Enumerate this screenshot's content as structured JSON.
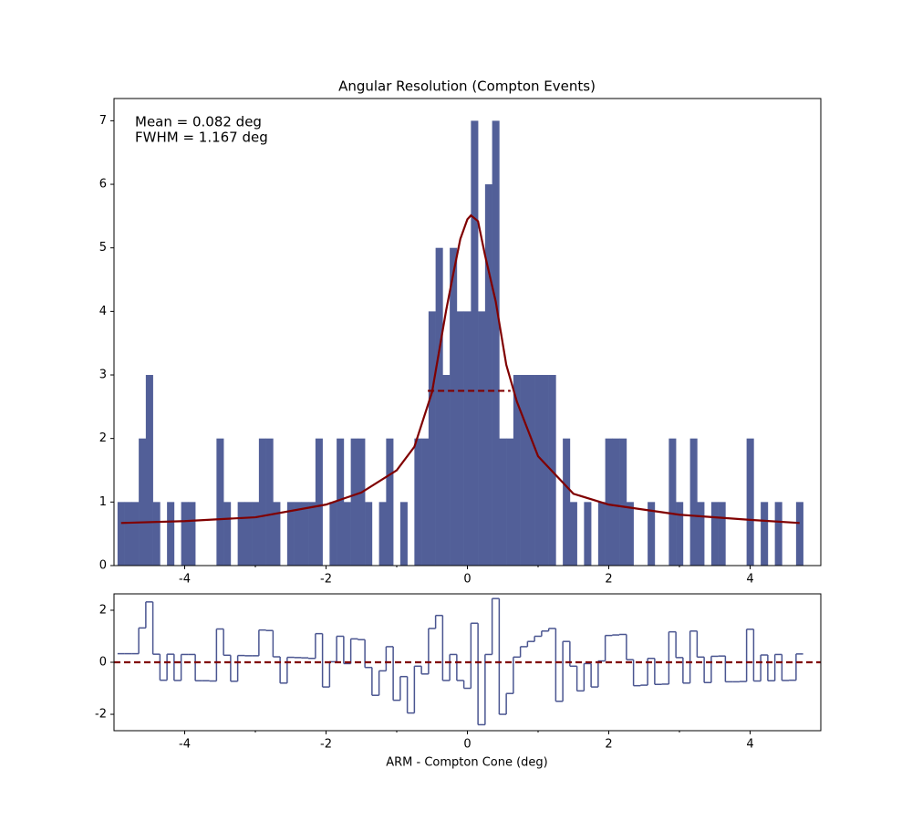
{
  "chart_data": [
    {
      "type": "histogram",
      "title": "Angular Resolution (Compton Events)",
      "annotations": [
        "Mean = 0.082 deg",
        "FWHM = 1.167 deg"
      ],
      "color": "#525f98",
      "bins": [
        -4.95,
        -4.85,
        -4.75,
        -4.65,
        -4.55,
        -4.45,
        -4.35,
        -4.25,
        -4.15,
        -4.05,
        -3.95,
        -3.85,
        -3.75,
        -3.65,
        -3.55,
        -3.45,
        -3.35,
        -3.25,
        -3.15,
        -3.05,
        -2.95,
        -2.85,
        -2.75,
        -2.65,
        -2.55,
        -2.45,
        -2.35,
        -2.25,
        -2.15,
        -2.05,
        -1.95,
        -1.85,
        -1.75,
        -1.65,
        -1.55,
        -1.45,
        -1.35,
        -1.25,
        -1.15,
        -1.05,
        -0.95,
        -0.85,
        -0.75,
        -0.65,
        -0.55,
        -0.45,
        -0.35,
        -0.25,
        -0.15,
        -0.05,
        0.05,
        0.15,
        0.25,
        0.35,
        0.45,
        0.55,
        0.65,
        0.75,
        0.85,
        0.95,
        1.05,
        1.15,
        1.25,
        1.35,
        1.45,
        1.55,
        1.65,
        1.75,
        1.85,
        1.95,
        2.05,
        2.15,
        2.25,
        2.35,
        2.45,
        2.55,
        2.65,
        2.75,
        2.85,
        2.95,
        3.05,
        3.15,
        3.25,
        3.35,
        3.45,
        3.55,
        3.65,
        3.75,
        3.85,
        3.95,
        4.05,
        4.15,
        4.25,
        4.35,
        4.45,
        4.55,
        4.65,
        4.75
      ],
      "values": [
        1,
        1,
        1,
        2,
        3,
        1,
        0,
        1,
        0,
        1,
        1,
        0,
        0,
        0,
        2,
        1,
        0,
        1,
        1,
        1,
        2,
        2,
        1,
        0,
        1,
        1,
        1,
        1,
        2,
        0,
        1,
        2,
        1,
        2,
        2,
        1,
        0,
        1,
        2,
        0,
        1,
        0,
        2,
        2,
        4,
        5,
        3,
        5,
        4,
        4,
        7,
        4,
        6,
        7,
        2,
        2,
        3,
        3,
        3,
        3,
        3,
        3,
        0,
        2,
        1,
        0,
        1,
        0,
        1,
        2,
        2,
        2,
        1,
        0,
        0,
        1,
        0,
        0,
        2,
        1,
        0,
        2,
        1,
        0,
        1,
        1,
        0,
        0,
        0,
        2,
        0,
        1,
        0,
        1,
        0,
        0,
        1
      ],
      "fit": {
        "color": "#800000",
        "x": [
          -4.9,
          -4,
          -3,
          -2,
          -1.5,
          -1,
          -0.75,
          -0.5,
          -0.3,
          -0.2,
          -0.1,
          0,
          0.05,
          0.15,
          0.25,
          0.4,
          0.55,
          0.7,
          1,
          1.5,
          2,
          3,
          4,
          4.7
        ],
        "values": [
          0.67,
          0.7,
          0.76,
          0.96,
          1.15,
          1.5,
          1.87,
          2.73,
          4.02,
          4.59,
          5.14,
          5.45,
          5.51,
          5.42,
          4.88,
          4.16,
          3.16,
          2.58,
          1.72,
          1.13,
          0.96,
          0.8,
          0.72,
          0.67
        ]
      },
      "fwhm_line": {
        "x": [
          -0.56,
          0.61
        ],
        "y": 2.75
      },
      "xlim": [
        -5,
        5
      ],
      "ylim": [
        0,
        7.35
      ],
      "xticks": [
        -4,
        -2,
        0,
        2,
        4
      ],
      "xminor": [
        -3,
        -1,
        1,
        3
      ],
      "yticks": [
        0,
        1,
        2,
        3,
        4,
        5,
        6,
        7
      ]
    },
    {
      "type": "step",
      "xlabel": "ARM - Compton Cone (deg)",
      "color": "#4a5590",
      "values": [
        0.33,
        0.33,
        0.33,
        1.32,
        2.32,
        0.31,
        -0.69,
        0.31,
        -0.7,
        0.3,
        0.3,
        -0.71,
        -0.71,
        -0.72,
        1.28,
        0.27,
        -0.73,
        0.26,
        0.25,
        0.25,
        1.24,
        1.22,
        0.21,
        -0.8,
        0.19,
        0.18,
        0.17,
        0.15,
        1.1,
        -0.95,
        0.02,
        1.0,
        -0.05,
        0.9,
        0.87,
        -0.2,
        -1.27,
        -0.33,
        0.6,
        -1.46,
        -0.55,
        -1.95,
        -0.15,
        -0.45,
        1.3,
        1.8,
        -0.7,
        0.3,
        -0.7,
        -1.0,
        1.5,
        -2.4,
        0.3,
        2.45,
        -2.0,
        -1.2,
        0.2,
        0.6,
        0.8,
        1.0,
        1.2,
        1.3,
        -1.5,
        0.8,
        -0.15,
        -1.1,
        -0.05,
        -0.95,
        0.05,
        1.03,
        1.05,
        1.07,
        0.1,
        -0.9,
        -0.88,
        0.15,
        -0.85,
        -0.84,
        1.17,
        0.18,
        -0.8,
        1.2,
        0.2,
        -0.78,
        0.23,
        0.24,
        -0.75,
        -0.75,
        -0.74,
        1.27,
        -0.72,
        0.28,
        -0.71,
        0.3,
        -0.7,
        -0.69,
        0.32
      ],
      "reference": 0,
      "reference_color": "#800000",
      "xlim": [
        -5,
        5
      ],
      "ylim": [
        -2.63,
        2.63
      ],
      "xticks": [
        -4,
        -2,
        0,
        2,
        4
      ],
      "xminor": [
        -3,
        -1,
        1,
        3
      ],
      "yticks": [
        -2,
        0,
        2
      ]
    }
  ]
}
